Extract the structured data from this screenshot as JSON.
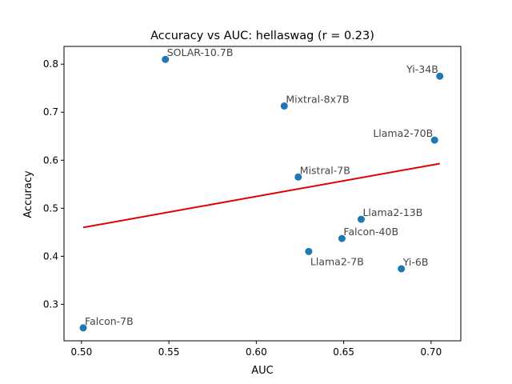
{
  "chart_data": {
    "type": "scatter",
    "title": "Accuracy vs AUC: hellaswag (r = 0.23)",
    "xlabel": "AUC",
    "ylabel": "Accuracy",
    "xlim": [
      0.49,
      0.717
    ],
    "ylim": [
      0.224,
      0.837
    ],
    "xticks": [
      0.5,
      0.55,
      0.6,
      0.65,
      0.7
    ],
    "xtick_labels": [
      "0.50",
      "0.55",
      "0.60",
      "0.65",
      "0.70"
    ],
    "yticks": [
      0.3,
      0.4,
      0.5,
      0.6,
      0.7,
      0.8
    ],
    "ytick_labels": [
      "0.3",
      "0.4",
      "0.5",
      "0.6",
      "0.7",
      "0.8"
    ],
    "grid": false,
    "point_color": "#1f77b4",
    "trend_color": "#e00000",
    "points": [
      {
        "label": "SOLAR-10.7B",
        "x": 0.548,
        "y": 0.81,
        "anchor": "start"
      },
      {
        "label": "Yi-34B",
        "x": 0.705,
        "y": 0.775,
        "anchor": "end"
      },
      {
        "label": "Mixtral-8x7B",
        "x": 0.616,
        "y": 0.713,
        "anchor": "start"
      },
      {
        "label": "Llama2-70B",
        "x": 0.702,
        "y": 0.642,
        "anchor": "end"
      },
      {
        "label": "Mistral-7B",
        "x": 0.624,
        "y": 0.565,
        "anchor": "start"
      },
      {
        "label": "Llama2-13B",
        "x": 0.66,
        "y": 0.477,
        "anchor": "start"
      },
      {
        "label": "Falcon-40B",
        "x": 0.649,
        "y": 0.437,
        "anchor": "start"
      },
      {
        "label": "Llama2-7B",
        "x": 0.63,
        "y": 0.41,
        "anchor": "start-below"
      },
      {
        "label": "Yi-6B",
        "x": 0.683,
        "y": 0.374,
        "anchor": "start"
      },
      {
        "label": "Falcon-7B",
        "x": 0.501,
        "y": 0.251,
        "anchor": "start"
      }
    ],
    "trendline": {
      "x": [
        0.501,
        0.705
      ],
      "y": [
        0.46,
        0.593
      ]
    }
  }
}
